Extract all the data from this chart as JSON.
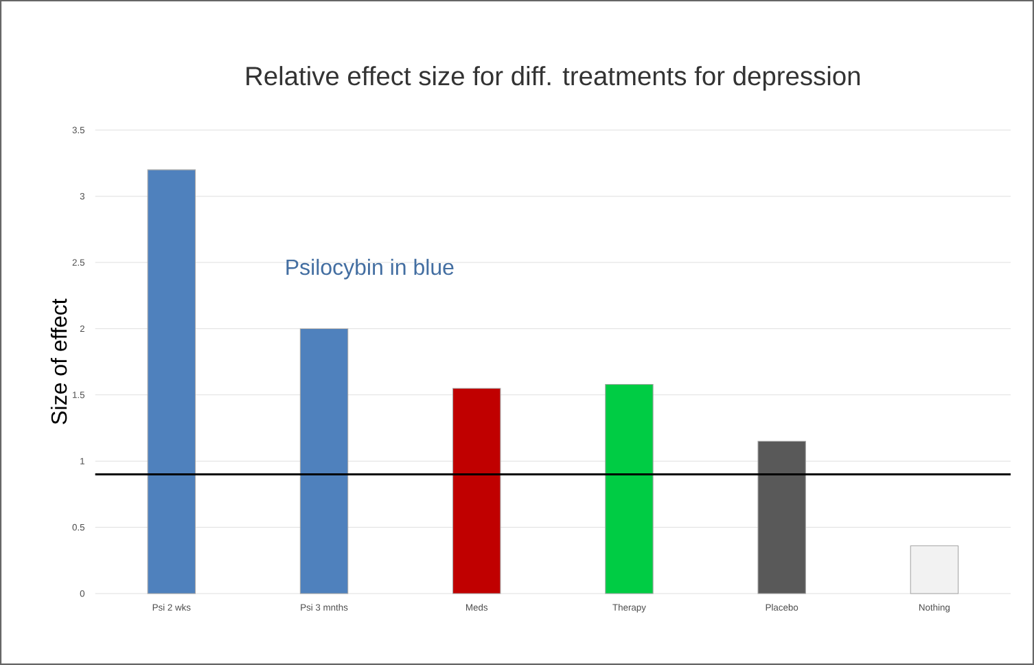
{
  "chart_data": {
    "type": "bar",
    "title": "Relative effect size for diff. treatments for depression",
    "ylabel": "Size of effect",
    "categories": [
      "Psi 2 wks",
      "Psi 3 mnths",
      "Meds",
      "Therapy",
      "Placebo",
      "Nothing"
    ],
    "values": [
      3.2,
      2.0,
      1.55,
      1.58,
      1.15,
      0.36
    ],
    "colors": [
      "#4f81bd",
      "#4f81bd",
      "#c00000",
      "#00cc44",
      "#595959",
      "#f2f2f2"
    ],
    "ylim": [
      0,
      3.5
    ],
    "yticks": [
      0,
      0.5,
      1,
      1.5,
      2,
      2.5,
      3,
      3.5
    ],
    "grid": "y",
    "ref_lines": [
      {
        "axis": "y",
        "value": 0.9,
        "color": "#000000"
      }
    ],
    "annotations": [
      "Psilocybin in blue"
    ]
  }
}
